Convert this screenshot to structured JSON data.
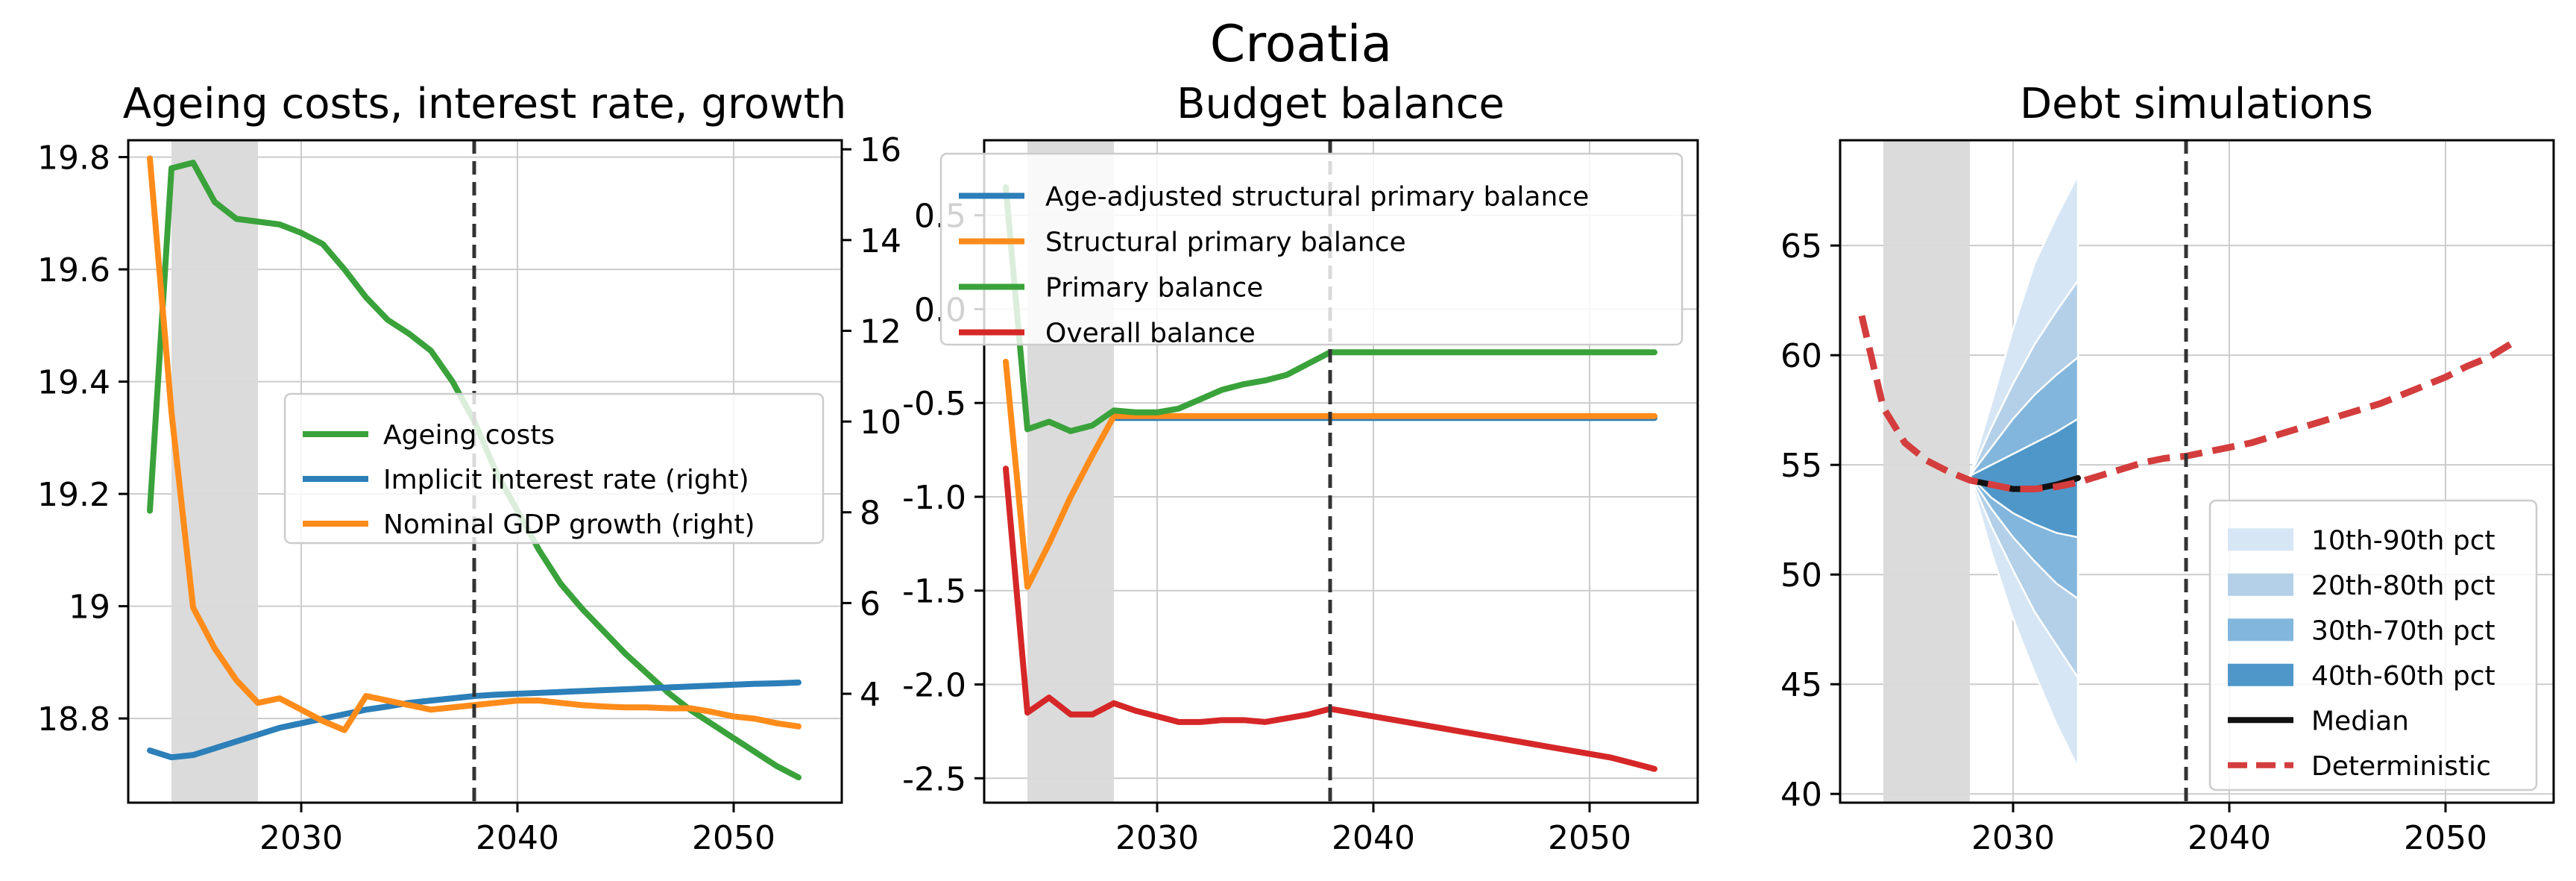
{
  "figure_title": "Croatia",
  "colors": {
    "green": "#3aa23a",
    "blue": "#2c7fb8",
    "orange": "#ff8c1a",
    "red": "#d62728",
    "det_red": "#d43d3d",
    "band_10_90": "#d6e6f4",
    "band_20_80": "#b3d0e8",
    "band_30_70": "#82b6dc",
    "band_40_60": "#4f97c9",
    "median": "#111111",
    "shade": "#d9d9d9",
    "vline": "#333333",
    "grid": "#cccccc"
  },
  "chart_data": [
    {
      "type": "line",
      "title": "Ageing costs, interest rate, growth",
      "xlim": [
        2022,
        2055
      ],
      "ylim": [
        18.65,
        19.83
      ],
      "y2lim": [
        1.6,
        16.2
      ],
      "xticks": [
        2030,
        2040,
        2050
      ],
      "yticks": [
        18.8,
        19.0,
        19.2,
        19.4,
        19.6,
        19.8
      ],
      "y2ticks": [
        4,
        6,
        8,
        10,
        12,
        14,
        16
      ],
      "shade": [
        2024,
        2028
      ],
      "vline": 2038,
      "legend_position": "center-right",
      "series": [
        {
          "name": "Ageing costs",
          "axis": "left",
          "color_key": "green",
          "x": [
            2023,
            2024,
            2025,
            2026,
            2027,
            2028,
            2029,
            2030,
            2031,
            2032,
            2033,
            2034,
            2035,
            2036,
            2037,
            2038,
            2039,
            2040,
            2041,
            2042,
            2043,
            2044,
            2045,
            2046,
            2047,
            2048,
            2049,
            2050,
            2051,
            2052,
            2053
          ],
          "y": [
            19.17,
            19.78,
            19.79,
            19.72,
            19.69,
            19.685,
            19.68,
            19.665,
            19.645,
            19.6,
            19.55,
            19.51,
            19.485,
            19.455,
            19.4,
            19.33,
            19.24,
            19.17,
            19.1,
            19.04,
            18.995,
            18.955,
            18.915,
            18.88,
            18.845,
            18.815,
            18.79,
            18.765,
            18.74,
            18.715,
            18.695
          ]
        },
        {
          "name": "Implicit interest rate (right)",
          "axis": "right",
          "color_key": "blue",
          "x": [
            2023,
            2024,
            2025,
            2026,
            2027,
            2028,
            2029,
            2030,
            2031,
            2032,
            2033,
            2034,
            2035,
            2036,
            2037,
            2038,
            2039,
            2040,
            2041,
            2042,
            2043,
            2044,
            2045,
            2046,
            2047,
            2048,
            2049,
            2050,
            2051,
            2052,
            2053
          ],
          "y": [
            2.75,
            2.6,
            2.65,
            2.8,
            2.95,
            3.1,
            3.25,
            3.35,
            3.45,
            3.55,
            3.65,
            3.72,
            3.8,
            3.85,
            3.9,
            3.95,
            3.98,
            4.0,
            4.02,
            4.04,
            4.06,
            4.08,
            4.1,
            4.12,
            4.14,
            4.16,
            4.18,
            4.2,
            4.22,
            4.23,
            4.25
          ]
        },
        {
          "name": "Nominal GDP growth (right)",
          "axis": "right",
          "color_key": "orange",
          "x": [
            2023,
            2024,
            2025,
            2026,
            2027,
            2028,
            2029,
            2030,
            2031,
            2032,
            2033,
            2034,
            2035,
            2036,
            2037,
            2038,
            2039,
            2040,
            2041,
            2042,
            2043,
            2044,
            2045,
            2046,
            2047,
            2048,
            2049,
            2050,
            2051,
            2052,
            2053
          ],
          "y": [
            15.8,
            10.2,
            5.9,
            5.0,
            4.3,
            3.8,
            3.9,
            3.65,
            3.4,
            3.2,
            3.95,
            3.85,
            3.75,
            3.65,
            3.7,
            3.75,
            3.8,
            3.85,
            3.85,
            3.8,
            3.75,
            3.72,
            3.7,
            3.7,
            3.68,
            3.68,
            3.6,
            3.5,
            3.45,
            3.35,
            3.28
          ]
        }
      ]
    },
    {
      "type": "line",
      "title": "Budget balance",
      "xlim": [
        2022,
        2055
      ],
      "ylim": [
        -2.63,
        0.9
      ],
      "xticks": [
        2030,
        2040,
        2050
      ],
      "yticks": [
        -2.5,
        -2.0,
        -1.5,
        -1.0,
        -0.5,
        0.0,
        0.5
      ],
      "ytick_labels": [
        "-2.5",
        "-2.0",
        "-1.5",
        "-1.0",
        "-0.5",
        "0.0",
        "0.5"
      ],
      "shade": [
        2024,
        2028
      ],
      "vline": 2038,
      "legend_position": "upper-right",
      "series": [
        {
          "name": "Age-adjusted structural primary balance",
          "color_key": "blue",
          "x": [
            2028,
            2029,
            2030,
            2031,
            2032,
            2033,
            2034,
            2035,
            2036,
            2037,
            2038,
            2039,
            2040,
            2041,
            2042,
            2043,
            2044,
            2045,
            2046,
            2047,
            2048,
            2049,
            2050,
            2051,
            2052,
            2053
          ],
          "y": [
            -0.58,
            -0.58,
            -0.58,
            -0.58,
            -0.58,
            -0.58,
            -0.58,
            -0.58,
            -0.58,
            -0.58,
            -0.58,
            -0.58,
            -0.58,
            -0.58,
            -0.58,
            -0.58,
            -0.58,
            -0.58,
            -0.58,
            -0.58,
            -0.58,
            -0.58,
            -0.58,
            -0.58,
            -0.58,
            -0.58
          ]
        },
        {
          "name": "Structural primary balance",
          "color_key": "orange",
          "x": [
            2023,
            2024,
            2025,
            2026,
            2027,
            2028,
            2029,
            2030,
            2031,
            2032,
            2033,
            2034,
            2035,
            2036,
            2037,
            2038,
            2039,
            2040,
            2041,
            2042,
            2043,
            2044,
            2045,
            2046,
            2047,
            2048,
            2049,
            2050,
            2051,
            2052,
            2053
          ],
          "y": [
            -0.28,
            -1.48,
            -1.25,
            -1.0,
            -0.78,
            -0.57,
            -0.57,
            -0.57,
            -0.57,
            -0.57,
            -0.57,
            -0.57,
            -0.57,
            -0.57,
            -0.57,
            -0.57,
            -0.57,
            -0.57,
            -0.57,
            -0.57,
            -0.57,
            -0.57,
            -0.57,
            -0.57,
            -0.57,
            -0.57,
            -0.57,
            -0.57,
            -0.57,
            -0.57,
            -0.57
          ]
        },
        {
          "name": "Primary balance",
          "color_key": "green",
          "x": [
            2023,
            2024,
            2025,
            2026,
            2027,
            2028,
            2029,
            2030,
            2031,
            2032,
            2033,
            2034,
            2035,
            2036,
            2037,
            2038,
            2039,
            2040,
            2041,
            2042,
            2043,
            2044,
            2045,
            2046,
            2047,
            2048,
            2049,
            2050,
            2051,
            2052,
            2053
          ],
          "y": [
            0.65,
            -0.64,
            -0.6,
            -0.65,
            -0.62,
            -0.54,
            -0.55,
            -0.55,
            -0.53,
            -0.48,
            -0.43,
            -0.4,
            -0.38,
            -0.35,
            -0.29,
            -0.23,
            -0.23,
            -0.23,
            -0.23,
            -0.23,
            -0.23,
            -0.23,
            -0.23,
            -0.23,
            -0.23,
            -0.23,
            -0.23,
            -0.23,
            -0.23,
            -0.23,
            -0.23
          ]
        },
        {
          "name": "Overall balance",
          "color_key": "red",
          "x": [
            2023,
            2024,
            2025,
            2026,
            2027,
            2028,
            2029,
            2030,
            2031,
            2032,
            2033,
            2034,
            2035,
            2036,
            2037,
            2038,
            2039,
            2040,
            2041,
            2042,
            2043,
            2044,
            2045,
            2046,
            2047,
            2048,
            2049,
            2050,
            2051,
            2052,
            2053
          ],
          "y": [
            -0.85,
            -2.15,
            -2.07,
            -2.16,
            -2.16,
            -2.1,
            -2.14,
            -2.17,
            -2.2,
            -2.2,
            -2.19,
            -2.19,
            -2.2,
            -2.18,
            -2.16,
            -2.13,
            -2.15,
            -2.17,
            -2.19,
            -2.21,
            -2.23,
            -2.25,
            -2.27,
            -2.29,
            -2.31,
            -2.33,
            -2.35,
            -2.37,
            -2.39,
            -2.42,
            -2.45
          ]
        }
      ]
    },
    {
      "type": "area",
      "title": "Debt simulations",
      "xlim": [
        2022,
        2055
      ],
      "ylim": [
        39.6,
        69.8
      ],
      "xticks": [
        2030,
        2040,
        2050
      ],
      "yticks": [
        40,
        45,
        50,
        55,
        60,
        65
      ],
      "shade": [
        2024,
        2028
      ],
      "vline": 2038,
      "legend_position": "lower-right",
      "fan_x": [
        2028,
        2029,
        2030,
        2031,
        2032,
        2033
      ],
      "bands": [
        {
          "name": "10th-90th pct",
          "color_key": "band_10_90",
          "lower": [
            54.5,
            51.0,
            48.0,
            45.5,
            43.2,
            41.2
          ],
          "upper": [
            54.5,
            57.8,
            61.2,
            64.2,
            66.3,
            68.2
          ]
        },
        {
          "name": "20th-80th pct",
          "color_key": "band_20_80",
          "lower": [
            54.5,
            52.2,
            50.2,
            48.3,
            46.8,
            45.3
          ],
          "upper": [
            54.5,
            56.7,
            58.7,
            60.5,
            62.0,
            63.4
          ]
        },
        {
          "name": "30th-70th pct",
          "color_key": "band_30_70",
          "lower": [
            54.5,
            53.0,
            51.7,
            50.6,
            49.6,
            48.9
          ],
          "upper": [
            54.5,
            55.8,
            57.1,
            58.2,
            59.1,
            59.9
          ]
        },
        {
          "name": "40th-60th pct",
          "color_key": "band_40_60",
          "lower": [
            54.5,
            53.5,
            52.8,
            52.3,
            51.9,
            51.7
          ],
          "upper": [
            54.5,
            55.0,
            55.5,
            56.0,
            56.5,
            57.1
          ]
        }
      ],
      "series": [
        {
          "name": "Median",
          "color_key": "median",
          "style": "solid",
          "x": [
            2028,
            2029,
            2030,
            2031,
            2032,
            2033
          ],
          "y": [
            54.3,
            54.1,
            53.9,
            53.9,
            54.1,
            54.4
          ]
        },
        {
          "name": "Deterministic",
          "color_key": "det_red",
          "style": "dashed",
          "x": [
            2023,
            2024,
            2025,
            2026,
            2027,
            2028,
            2029,
            2030,
            2031,
            2032,
            2033,
            2034,
            2035,
            2036,
            2037,
            2038,
            2039,
            2040,
            2041,
            2042,
            2043,
            2044,
            2045,
            2046,
            2047,
            2048,
            2049,
            2050,
            2051,
            2052,
            2053
          ],
          "y": [
            61.8,
            57.6,
            56.0,
            55.2,
            54.7,
            54.3,
            54.1,
            53.9,
            53.9,
            54.0,
            54.2,
            54.5,
            54.8,
            55.1,
            55.3,
            55.4,
            55.6,
            55.8,
            56.0,
            56.3,
            56.6,
            56.9,
            57.2,
            57.5,
            57.8,
            58.2,
            58.6,
            59.0,
            59.5,
            59.9,
            60.5
          ]
        }
      ]
    }
  ]
}
